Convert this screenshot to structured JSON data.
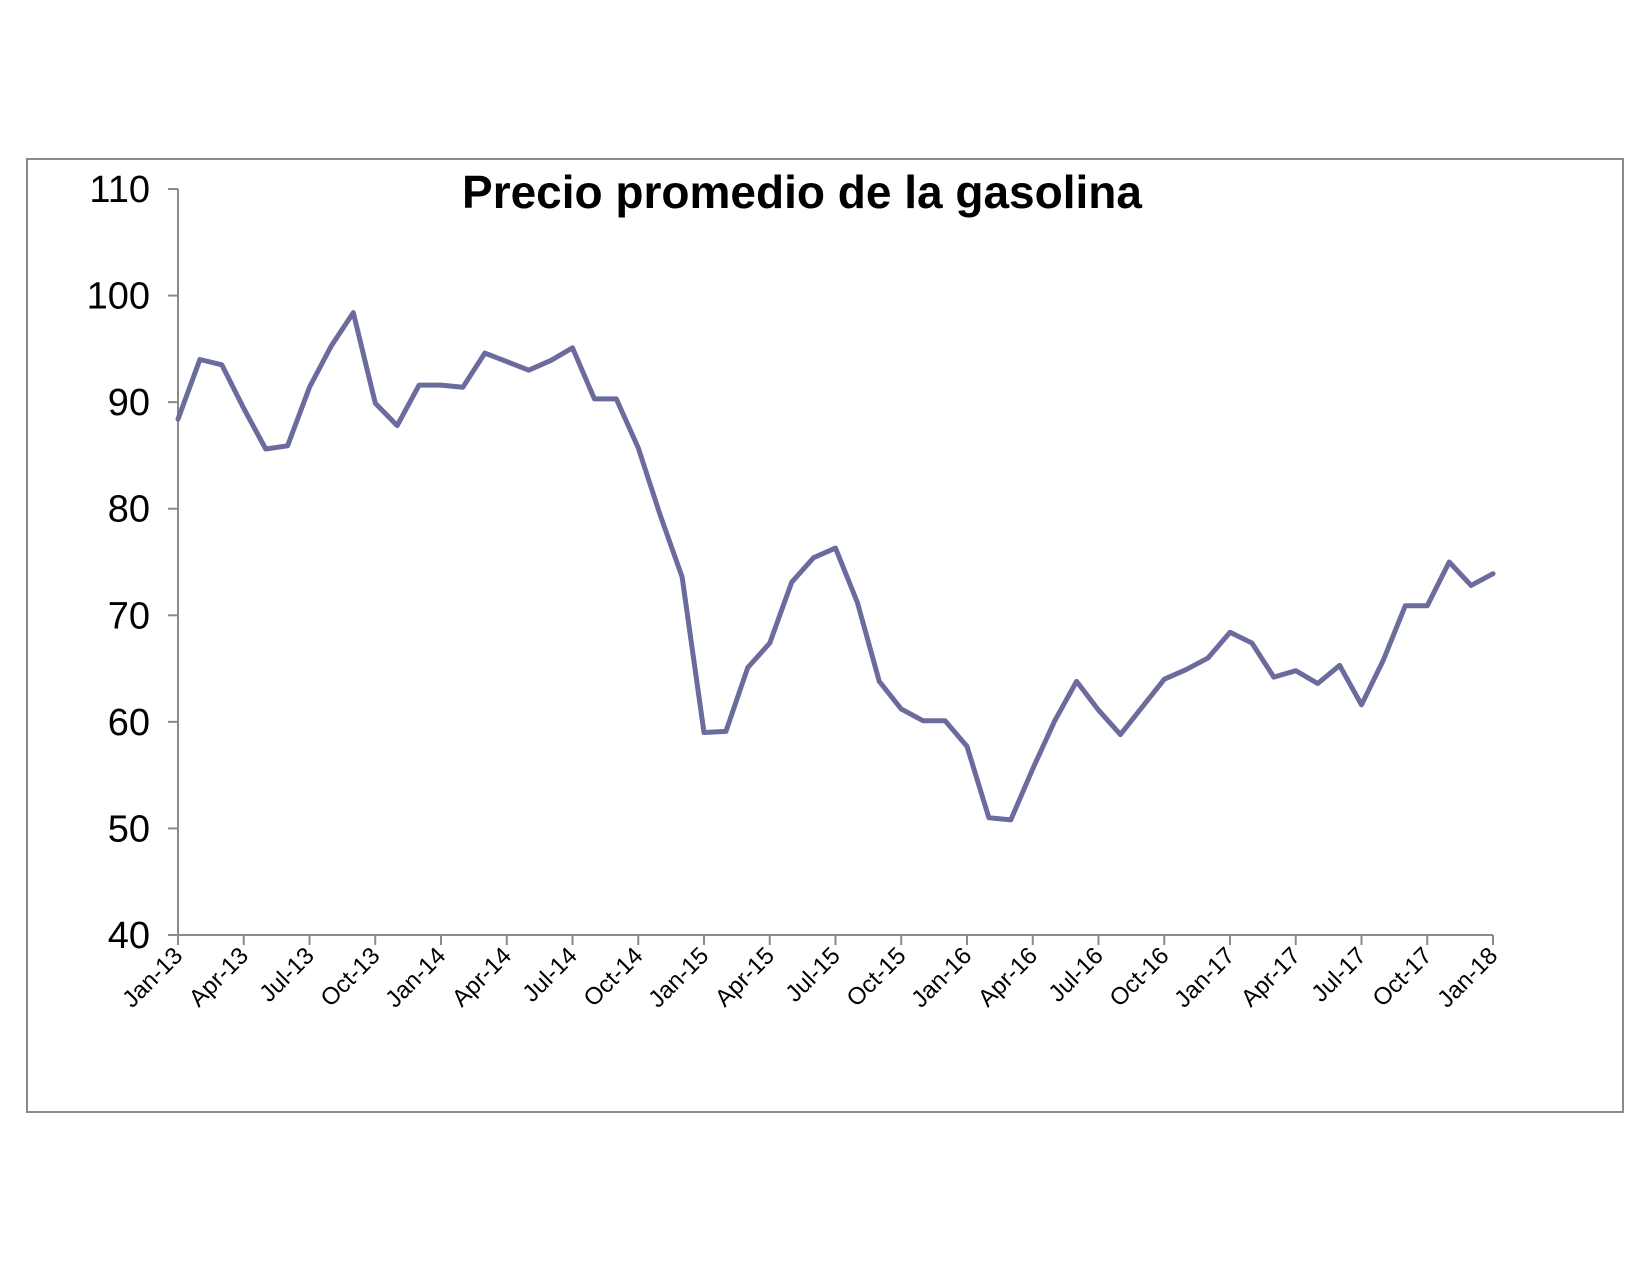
{
  "chart_data": {
    "type": "line",
    "title": "Precio promedio de la gasolina",
    "xlabel": "",
    "ylabel": "",
    "ylim": [
      40,
      110
    ],
    "yticks": [
      40,
      50,
      60,
      70,
      80,
      90,
      100,
      110
    ],
    "grid": false,
    "legend": "none",
    "x_tick_labels": [
      "Jan-13",
      "Apr-13",
      "Jul-13",
      "Oct-13",
      "Jan-14",
      "Apr-14",
      "Jul-14",
      "Oct-14",
      "Jan-15",
      "Apr-15",
      "Jul-15",
      "Oct-15",
      "Jan-16",
      "Apr-16",
      "Jul-16",
      "Oct-16",
      "Jan-17",
      "Apr-17",
      "Jul-17",
      "Oct-17",
      "Jan-18"
    ],
    "x": [
      "Jan-13",
      "Feb-13",
      "Mar-13",
      "Apr-13",
      "May-13",
      "Jun-13",
      "Jul-13",
      "Aug-13",
      "Sep-13",
      "Oct-13",
      "Nov-13",
      "Dec-13",
      "Jan-14",
      "Feb-14",
      "Mar-14",
      "Apr-14",
      "May-14",
      "Jun-14",
      "Jul-14",
      "Aug-14",
      "Sep-14",
      "Oct-14",
      "Nov-14",
      "Dec-14",
      "Jan-15",
      "Feb-15",
      "Mar-15",
      "Apr-15",
      "May-15",
      "Jun-15",
      "Jul-15",
      "Aug-15",
      "Sep-15",
      "Oct-15",
      "Nov-15",
      "Dec-15",
      "Jan-16",
      "Feb-16",
      "Mar-16",
      "Apr-16",
      "May-16",
      "Jun-16",
      "Jul-16",
      "Aug-16",
      "Sep-16",
      "Oct-16",
      "Nov-16",
      "Dec-16",
      "Jan-17",
      "Feb-17",
      "Mar-17",
      "Apr-17",
      "May-17",
      "Jun-17",
      "Jul-17",
      "Aug-17",
      "Sep-17",
      "Oct-17",
      "Nov-17",
      "Dec-17",
      "Jan-18"
    ],
    "series": [
      {
        "name": "",
        "color": "#6b6b9e",
        "values": [
          88.4,
          94.0,
          93.5,
          89.4,
          85.6,
          85.9,
          91.4,
          95.3,
          98.4,
          89.9,
          87.8,
          91.6,
          91.6,
          91.4,
          94.6,
          93.8,
          93.0,
          93.9,
          95.1,
          90.3,
          90.3,
          85.7,
          79.4,
          73.6,
          59.0,
          59.1,
          65.1,
          67.4,
          73.1,
          75.4,
          76.3,
          71.2,
          63.8,
          61.2,
          60.1,
          60.1,
          57.7,
          51.0,
          50.8,
          55.6,
          60.1,
          63.8,
          61.1,
          58.8,
          61.4,
          64.0,
          64.9,
          66.0,
          68.4,
          67.4,
          64.2,
          64.8,
          63.6,
          65.3,
          61.6,
          65.8,
          70.9,
          70.9,
          75.0,
          72.8,
          73.9
        ]
      }
    ]
  }
}
